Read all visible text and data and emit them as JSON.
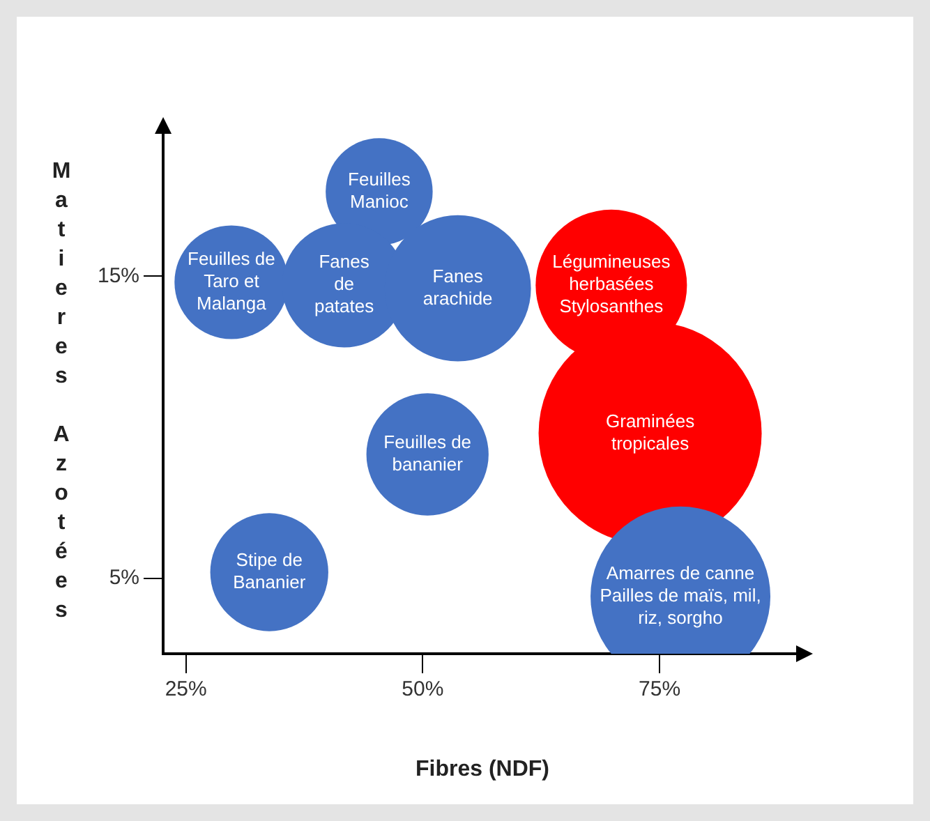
{
  "chart_data": {
    "type": "bubble",
    "xlabel": "Fibres (NDF)",
    "ylabel": "Matieres Azotées",
    "xlim": [
      22.6,
      90
    ],
    "xticks": [
      {
        "value": 25,
        "label": "25%"
      },
      {
        "value": 50,
        "label": "50%"
      },
      {
        "value": 75,
        "label": "75%"
      }
    ],
    "ylim": [
      2.5,
      19.9
    ],
    "yticks": [
      {
        "value": 5,
        "label": "5%"
      },
      {
        "value": 15,
        "label": "15%"
      }
    ],
    "grid": false,
    "legend": false,
    "series": [
      {
        "x": [
          45.4,
          29.8,
          41.7,
          53.7,
          69.9,
          50.5,
          74,
          33.8,
          77.2
        ],
        "values": [
          17.8,
          14.8,
          14.7,
          14.6,
          14.7,
          9.1,
          9.8,
          5.2,
          4.4
        ],
        "sizes": [
          0.23,
          0.26,
          0.31,
          0.43,
          0.46,
          0.3,
          1,
          0.28,
          0.65
        ],
        "colors": [
          "#4472c4",
          "#4472c4",
          "#4472c4",
          "#4472c4",
          "#ff0000",
          "#4472c4",
          "#ff0000",
          "#4472c4",
          "#4472c4"
        ]
      }
    ],
    "annotations": [
      {
        "text": "Feuilles\nManioc",
        "x": 45.4,
        "y": 17.8
      },
      {
        "text": "Feuilles de\nTaro et\nMalanga",
        "x": 29.8,
        "y": 14.8
      },
      {
        "text": "Fanes\nde\npatates",
        "x": 41.7,
        "y": 14.7
      },
      {
        "text": "Fanes\narachide",
        "x": 53.7,
        "y": 14.6
      },
      {
        "text": "Légumineuses\nherbasées\nStylosanthes",
        "x": 69.9,
        "y": 14.7
      },
      {
        "text": "Feuilles de\nbananier",
        "x": 50.5,
        "y": 9.1
      },
      {
        "text": "Graminées\ntropicales",
        "x": 74,
        "y": 9.8
      },
      {
        "text": "Stipe de\nBananier",
        "x": 33.8,
        "y": 5.2
      },
      {
        "text": "Amarres de canne\nPailles de maïs, mil,\nriz, sorgho",
        "x": 77.2,
        "y": 4.4
      }
    ]
  }
}
